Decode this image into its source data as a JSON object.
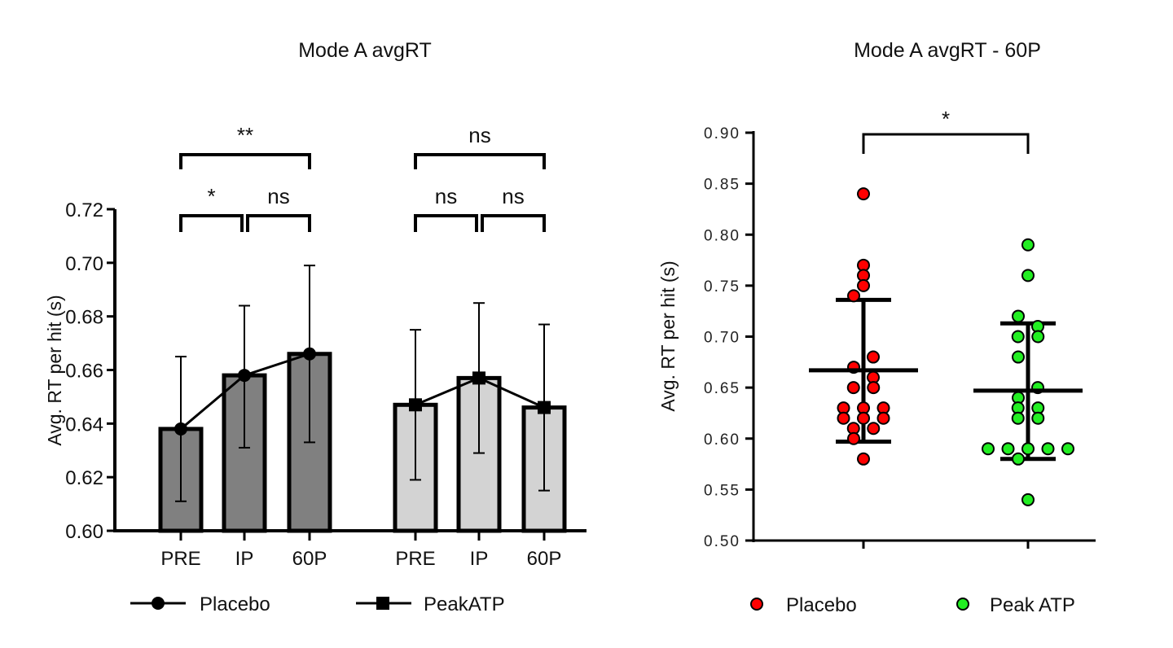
{
  "chart_data": [
    {
      "type": "bar",
      "title": "Mode A avgRT",
      "ylabel": "Avg. RT per hit (s)",
      "ylim": [
        0.6,
        0.72
      ],
      "yticks": [
        "0.60",
        "0.62",
        "0.64",
        "0.66",
        "0.68",
        "0.70",
        "0.72"
      ],
      "categories": [
        "PRE",
        "IP",
        "60P"
      ],
      "series": [
        {
          "name": "Placebo",
          "color": "#808080",
          "marker": "circle",
          "values": [
            0.638,
            0.658,
            0.666
          ],
          "err_low": [
            0.611,
            0.631,
            0.633
          ],
          "err_high": [
            0.665,
            0.684,
            0.699
          ]
        },
        {
          "name": "PeakATP",
          "color": "#d3d3d3",
          "marker": "square",
          "values": [
            0.647,
            0.657,
            0.646
          ],
          "err_low": [
            0.619,
            0.629,
            0.615
          ],
          "err_high": [
            0.675,
            0.685,
            0.677
          ]
        }
      ],
      "comparisons": [
        {
          "series": 0,
          "from": "PRE",
          "to": "IP",
          "label": "*"
        },
        {
          "series": 0,
          "from": "IP",
          "to": "60P",
          "label": "ns"
        },
        {
          "series": 0,
          "from": "PRE",
          "to": "60P",
          "label": "**"
        },
        {
          "series": 1,
          "from": "PRE",
          "to": "IP",
          "label": "ns"
        },
        {
          "series": 1,
          "from": "IP",
          "to": "60P",
          "label": "ns"
        },
        {
          "series": 1,
          "from": "PRE",
          "to": "60P",
          "label": "ns"
        }
      ],
      "legend": "bottom"
    },
    {
      "type": "scatter",
      "title": "Mode A avgRT - 60P",
      "ylabel": "Avg. RT per hit (s)",
      "ylim": [
        0.5,
        0.9
      ],
      "yticks": [
        "0.50",
        "0.55",
        "0.60",
        "0.65",
        "0.70",
        "0.75",
        "0.80",
        "0.85",
        "0.90"
      ],
      "series": [
        {
          "name": "Placebo",
          "color": "#ff0000",
          "values": [
            0.84,
            0.77,
            0.76,
            0.75,
            0.74,
            0.68,
            0.67,
            0.66,
            0.65,
            0.65,
            0.63,
            0.63,
            0.63,
            0.62,
            0.62,
            0.62,
            0.61,
            0.61,
            0.6,
            0.58
          ],
          "mean": 0.667,
          "sd_low": 0.597,
          "sd_high": 0.736
        },
        {
          "name": "Peak ATP",
          "color": "#22ee22",
          "values": [
            0.79,
            0.76,
            0.72,
            0.71,
            0.7,
            0.7,
            0.68,
            0.65,
            0.64,
            0.63,
            0.63,
            0.62,
            0.62,
            0.59,
            0.59,
            0.59,
            0.59,
            0.59,
            0.58,
            0.54
          ],
          "mean": 0.647,
          "sd_low": 0.58,
          "sd_high": 0.713
        }
      ],
      "comparisons": [
        {
          "from": "Placebo",
          "to": "Peak ATP",
          "label": "*"
        }
      ],
      "legend": "bottom"
    }
  ]
}
